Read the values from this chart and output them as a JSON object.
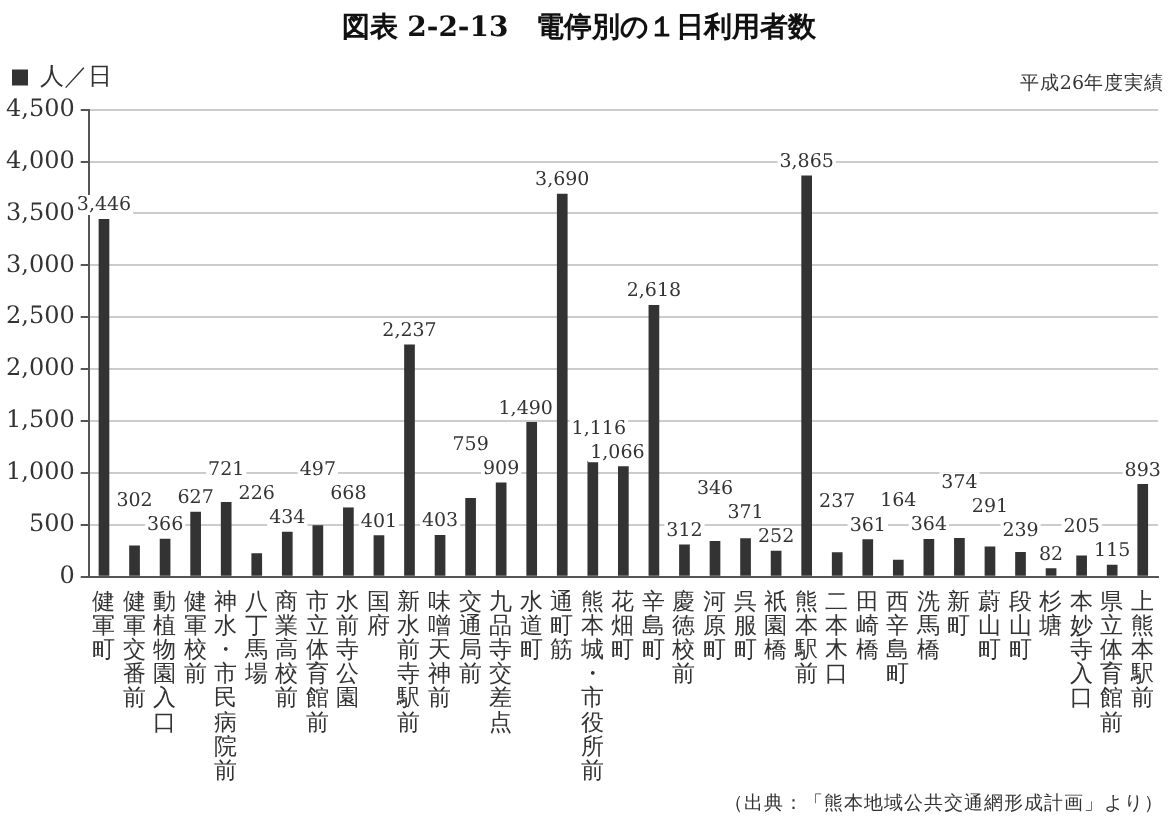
{
  "chart_data": {
    "type": "bar",
    "title": "図表 2-2-13　電停別の１日利用者数",
    "categories": [
      "健軍町",
      "健軍交番前",
      "動植物園入口",
      "健軍校前",
      "神水・市民病院前",
      "八丁馬場",
      "商業高校前",
      "市立体育館前",
      "水前寺公園",
      "国府",
      "新水前寺駅前",
      "味噌天神前",
      "交通局前",
      "九品寺交差点",
      "水道町",
      "通町筋",
      "熊本城・市役所前",
      "花畑町",
      "辛島町",
      "慶徳校前",
      "河原町",
      "呉服町",
      "祇園橋",
      "熊本駅前",
      "二本木口",
      "田崎橋",
      "西辛島町",
      "洗馬橋",
      "新町",
      "蔚山町",
      "段山町",
      "杉塘",
      "本妙寺入口",
      "県立体育館前",
      "上熊本駅前"
    ],
    "series": [
      {
        "name": "人／日",
        "color": "#333333",
        "values": [
          3446,
          302,
          366,
          627,
          721,
          226,
          434,
          497,
          668,
          401,
          2237,
          403,
          759,
          909,
          1490,
          3690,
          1116,
          1066,
          2618,
          312,
          346,
          371,
          252,
          3865,
          237,
          361,
          164,
          364,
          374,
          291,
          239,
          82,
          205,
          115,
          893
        ],
        "value_labels": [
          "3,446",
          "302",
          "366",
          "627",
          "721",
          "226",
          "434",
          "497",
          "668",
          "401",
          "2,237",
          "403",
          "759",
          "909",
          "1,490",
          "3,690",
          "1,116",
          "1,066",
          "2,618",
          "312",
          "346",
          "371",
          "252",
          "3,865",
          "237",
          "361",
          "164",
          "364",
          "374",
          "291",
          "239",
          "82",
          "205",
          "115",
          "893"
        ]
      }
    ],
    "ylim": [
      0,
      4500
    ],
    "yticks": [
      0,
      500,
      {
        "value": 1000,
        "label": "1,000"
      },
      {
        "value": 1500,
        "label": "1,500"
      },
      {
        "value": 2000,
        "label": "2,000"
      },
      {
        "value": 2500,
        "label": "2,500"
      },
      {
        "value": 3000,
        "label": "3,000"
      },
      {
        "value": 3500,
        "label": "3,500"
      },
      {
        "value": 4000,
        "label": "4,000"
      },
      {
        "value": 4500,
        "label": "4,500"
      }
    ],
    "grid": "y",
    "legend": "top left",
    "annotations": [
      "平成26年度実績",
      "（出典：「熊本地域公共交通網形成計画」より）"
    ]
  }
}
